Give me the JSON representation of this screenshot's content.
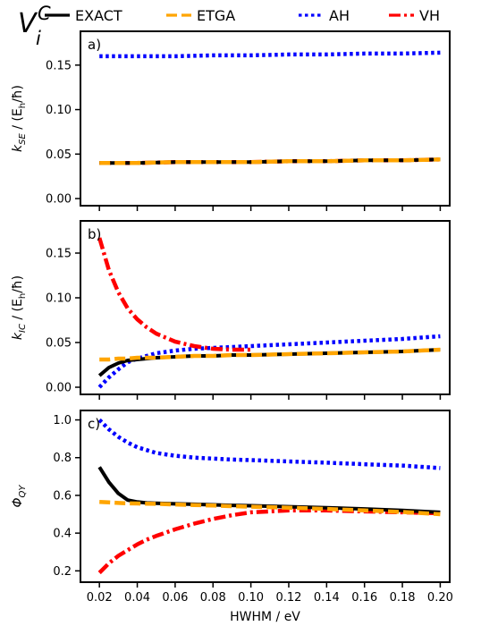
{
  "figure": {
    "title_main": "V",
    "title_sup": "C",
    "title_sub": "i"
  },
  "legend": [
    {
      "key": "EXACT",
      "label": "EXACT",
      "color": "#000000",
      "dash": "solid"
    },
    {
      "key": "ETGA",
      "label": "ETGA",
      "color": "#ffa500",
      "dash": "dashed"
    },
    {
      "key": "AH",
      "label": "AH",
      "color": "#0000ff",
      "dash": "dotted"
    },
    {
      "key": "VH",
      "label": "VH",
      "color": "#ff0000",
      "dash": "dashdot"
    }
  ],
  "chart_data": [
    {
      "type": "line",
      "panel_label": "a)",
      "ylabel_main": "k",
      "ylabel_sub": "SE",
      "ylabel_unit": " / (E",
      "ylabel_unit_sub": "h",
      "ylabel_unit_end": "/ħ)",
      "xlabel": "",
      "xlim": [
        0.01,
        0.205
      ],
      "ylim": [
        -0.008,
        0.188
      ],
      "yticks": [
        0.0,
        0.05,
        0.1,
        0.15
      ],
      "ytick_labels": [
        "0.00",
        "0.05",
        "0.10",
        "0.15"
      ],
      "x": [
        0.02,
        0.04,
        0.06,
        0.08,
        0.1,
        0.12,
        0.14,
        0.16,
        0.18,
        0.2
      ],
      "series": [
        {
          "name": "EXACT",
          "values": [
            0.04,
            0.04,
            0.041,
            0.041,
            0.041,
            0.042,
            0.042,
            0.043,
            0.043,
            0.044
          ]
        },
        {
          "name": "ETGA",
          "values": [
            0.04,
            0.04,
            0.041,
            0.041,
            0.041,
            0.042,
            0.042,
            0.043,
            0.043,
            0.044
          ]
        },
        {
          "name": "AH",
          "values": [
            0.16,
            0.16,
            0.16,
            0.161,
            0.161,
            0.162,
            0.162,
            0.163,
            0.163,
            0.164
          ]
        },
        {
          "name": "VH",
          "values": [
            0.04,
            0.04,
            0.041,
            0.041,
            0.041,
            0.042,
            0.042,
            0.043,
            0.043,
            0.044
          ]
        }
      ]
    },
    {
      "type": "line",
      "panel_label": "b)",
      "ylabel_main": "k",
      "ylabel_sub": "IC",
      "ylabel_unit": " / (E",
      "ylabel_unit_sub": "h",
      "ylabel_unit_end": "/ħ)",
      "xlabel": "",
      "xlim": [
        0.01,
        0.205
      ],
      "ylim": [
        -0.008,
        0.186
      ],
      "yticks": [
        0.0,
        0.05,
        0.1,
        0.15
      ],
      "ytick_labels": [
        "0.00",
        "0.05",
        "0.10",
        "0.15"
      ],
      "x": [
        0.02,
        0.025,
        0.03,
        0.035,
        0.04,
        0.045,
        0.05,
        0.06,
        0.07,
        0.08,
        0.09,
        0.1,
        0.12,
        0.14,
        0.16,
        0.18,
        0.2
      ],
      "series": [
        {
          "name": "EXACT",
          "values": [
            0.013,
            0.022,
            0.027,
            0.03,
            0.031,
            0.032,
            0.033,
            0.034,
            0.035,
            0.035,
            0.036,
            0.036,
            0.037,
            0.038,
            0.039,
            0.04,
            0.042
          ]
        },
        {
          "name": "ETGA",
          "values": [
            0.031,
            0.031,
            0.032,
            0.032,
            0.033,
            0.033,
            0.033,
            0.034,
            0.035,
            0.035,
            0.036,
            0.036,
            0.037,
            0.038,
            0.039,
            0.04,
            0.042
          ]
        },
        {
          "name": "AH",
          "values": [
            0.0,
            0.011,
            0.02,
            0.028,
            0.032,
            0.035,
            0.038,
            0.041,
            0.043,
            0.044,
            0.045,
            0.046,
            0.048,
            0.05,
            0.052,
            0.054,
            0.057
          ]
        },
        {
          "name": "VH",
          "values": [
            0.167,
            0.131,
            0.106,
            0.088,
            0.076,
            0.067,
            0.06,
            0.051,
            0.046,
            0.043,
            0.042,
            0.042,
            null,
            null,
            null,
            null,
            null
          ]
        }
      ]
    },
    {
      "type": "line",
      "panel_label": "c)",
      "ylabel_main": "Φ",
      "ylabel_sub": "QY",
      "ylabel_unit": "",
      "ylabel_unit_sub": "",
      "ylabel_unit_end": "",
      "xlabel": "HWHM / eV",
      "xlim": [
        0.01,
        0.205
      ],
      "ylim": [
        0.14,
        1.05
      ],
      "yticks": [
        0.2,
        0.4,
        0.6,
        0.8,
        1.0
      ],
      "ytick_labels": [
        "0.2",
        "0.4",
        "0.6",
        "0.8",
        "1.0"
      ],
      "xticks": [
        0.02,
        0.04,
        0.06,
        0.08,
        0.1,
        0.12,
        0.14,
        0.16,
        0.18,
        0.2
      ],
      "xtick_labels": [
        "0.02",
        "0.04",
        "0.06",
        "0.08",
        "0.10",
        "0.12",
        "0.14",
        "0.16",
        "0.18",
        "0.20"
      ],
      "x": [
        0.02,
        0.025,
        0.03,
        0.035,
        0.04,
        0.045,
        0.05,
        0.06,
        0.07,
        0.08,
        0.09,
        0.1,
        0.12,
        0.14,
        0.16,
        0.18,
        0.2
      ],
      "series": [
        {
          "name": "EXACT",
          "values": [
            0.75,
            0.67,
            0.61,
            0.575,
            0.565,
            0.56,
            0.558,
            0.555,
            0.553,
            0.55,
            0.547,
            0.545,
            0.54,
            0.535,
            0.528,
            0.52,
            0.51
          ]
        },
        {
          "name": "ETGA",
          "values": [
            0.565,
            0.563,
            0.56,
            0.558,
            0.557,
            0.556,
            0.555,
            0.552,
            0.549,
            0.546,
            0.543,
            0.54,
            0.535,
            0.528,
            0.52,
            0.512,
            0.5
          ]
        },
        {
          "name": "AH",
          "values": [
            1.0,
            0.95,
            0.91,
            0.88,
            0.855,
            0.84,
            0.825,
            0.81,
            0.8,
            0.795,
            0.79,
            0.787,
            0.78,
            0.773,
            0.765,
            0.758,
            0.745
          ]
        },
        {
          "name": "VH",
          "values": [
            0.19,
            0.24,
            0.28,
            0.31,
            0.34,
            0.365,
            0.385,
            0.42,
            0.45,
            0.475,
            0.495,
            0.51,
            0.52,
            0.52,
            0.515,
            0.51,
            0.505
          ]
        }
      ]
    }
  ]
}
